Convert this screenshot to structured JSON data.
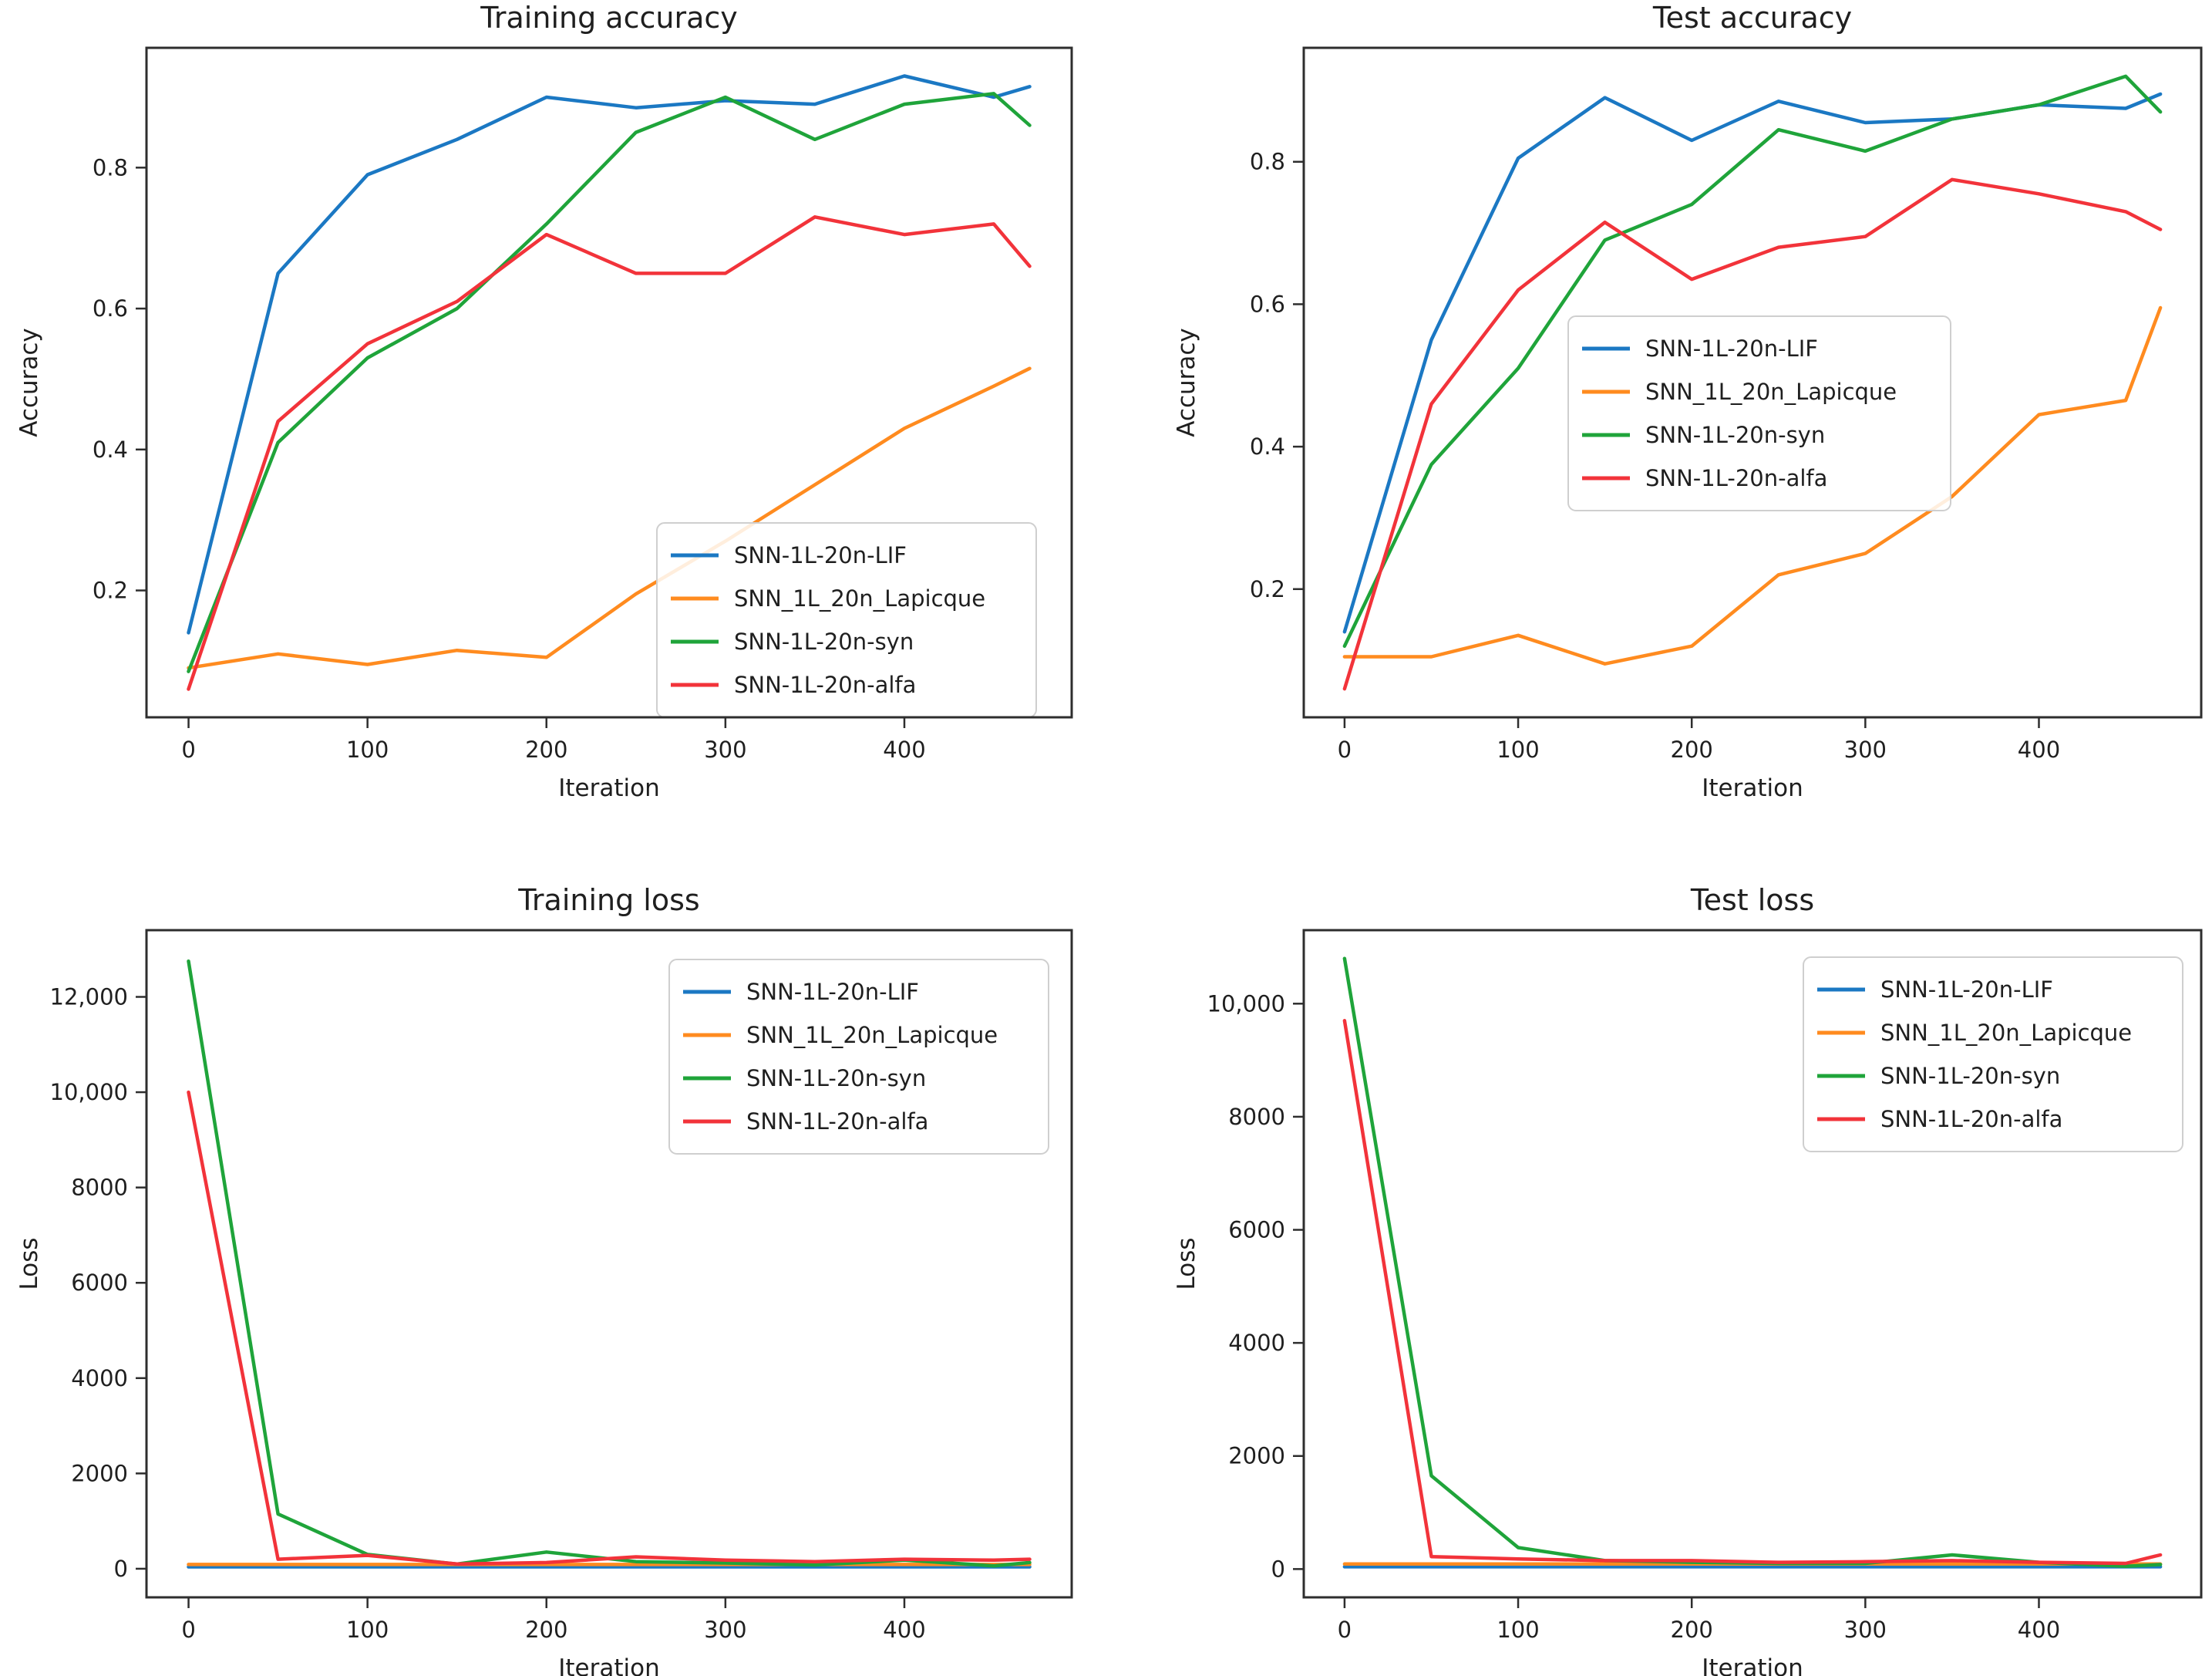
{
  "figure": {
    "background_color": "#ffffff",
    "text_color": "#1f1f1f",
    "spine_color": "#2e2e2e",
    "legend_border_color": "#cfcfcf"
  },
  "chart_data": [
    {
      "id": "training-accuracy",
      "type": "line",
      "title": "Training accuracy",
      "xlabel": "Iteration",
      "ylabel": "Accuracy",
      "grid": false,
      "legend_position": "lower right",
      "x": [
        0,
        50,
        100,
        150,
        200,
        250,
        300,
        350,
        400,
        450,
        470
      ],
      "xlim": [
        -23.5,
        493.5
      ],
      "ylim": [
        0.02,
        0.97
      ],
      "xticks": [
        {
          "v": 0,
          "label": "0"
        },
        {
          "v": 100,
          "label": "100"
        },
        {
          "v": 200,
          "label": "200"
        },
        {
          "v": 300,
          "label": "300"
        },
        {
          "v": 400,
          "label": "400"
        }
      ],
      "yticks": [
        {
          "v": 0.2,
          "label": "0.2"
        },
        {
          "v": 0.4,
          "label": "0.4"
        },
        {
          "v": 0.6,
          "label": "0.6"
        },
        {
          "v": 0.8,
          "label": "0.8"
        }
      ],
      "series": [
        {
          "name": "SNN-1L-20n-LIF",
          "color": "#1b78c3",
          "values": [
            0.14,
            0.65,
            0.79,
            0.84,
            0.9,
            0.885,
            0.895,
            0.89,
            0.93,
            0.9,
            0.915
          ]
        },
        {
          "name": "SNN_1L_20n_Lapicque",
          "color": "#ff8b1f",
          "values": [
            0.09,
            0.11,
            0.095,
            0.115,
            0.105,
            0.195,
            0.27,
            0.35,
            0.43,
            0.49,
            0.515
          ]
        },
        {
          "name": "SNN-1L-20n-syn",
          "color": "#1fa43a",
          "values": [
            0.085,
            0.41,
            0.53,
            0.6,
            0.72,
            0.85,
            0.9,
            0.84,
            0.89,
            0.905,
            0.86
          ]
        },
        {
          "name": "SNN-1L-20n-alfa",
          "color": "#f2333a",
          "values": [
            0.06,
            0.44,
            0.55,
            0.61,
            0.705,
            0.65,
            0.65,
            0.73,
            0.705,
            0.72,
            0.66
          ]
        }
      ]
    },
    {
      "id": "test-accuracy",
      "type": "line",
      "title": "Test accuracy",
      "xlabel": "Iteration",
      "ylabel": "Accuracy",
      "grid": false,
      "legend_position": "center",
      "x": [
        0,
        50,
        100,
        150,
        200,
        250,
        300,
        350,
        400,
        450,
        470
      ],
      "xlim": [
        -23.5,
        493.5
      ],
      "ylim": [
        0.02,
        0.96
      ],
      "xticks": [
        {
          "v": 0,
          "label": "0"
        },
        {
          "v": 100,
          "label": "100"
        },
        {
          "v": 200,
          "label": "200"
        },
        {
          "v": 300,
          "label": "300"
        },
        {
          "v": 400,
          "label": "400"
        }
      ],
      "yticks": [
        {
          "v": 0.2,
          "label": "0.2"
        },
        {
          "v": 0.4,
          "label": "0.4"
        },
        {
          "v": 0.6,
          "label": "0.6"
        },
        {
          "v": 0.8,
          "label": "0.8"
        }
      ],
      "series": [
        {
          "name": "SNN-1L-20n-LIF",
          "color": "#1b78c3",
          "values": [
            0.14,
            0.55,
            0.805,
            0.89,
            0.83,
            0.885,
            0.855,
            0.86,
            0.88,
            0.875,
            0.895
          ]
        },
        {
          "name": "SNN_1L_20n_Lapicque",
          "color": "#ff8b1f",
          "values": [
            0.105,
            0.105,
            0.135,
            0.095,
            0.12,
            0.22,
            0.25,
            0.33,
            0.445,
            0.465,
            0.595
          ]
        },
        {
          "name": "SNN-1L-20n-syn",
          "color": "#1fa43a",
          "values": [
            0.12,
            0.375,
            0.51,
            0.69,
            0.74,
            0.845,
            0.815,
            0.86,
            0.88,
            0.92,
            0.87
          ]
        },
        {
          "name": "SNN-1L-20n-alfa",
          "color": "#f2333a",
          "values": [
            0.06,
            0.46,
            0.62,
            0.715,
            0.635,
            0.68,
            0.695,
            0.775,
            0.755,
            0.73,
            0.705
          ]
        }
      ]
    },
    {
      "id": "training-loss",
      "type": "line",
      "title": "Training loss",
      "xlabel": "Iteration",
      "ylabel": "Loss",
      "grid": false,
      "legend_position": "upper right",
      "x": [
        0,
        50,
        100,
        150,
        200,
        250,
        300,
        350,
        400,
        450,
        470
      ],
      "xlim": [
        -23.5,
        493.5
      ],
      "ylim": [
        -600,
        13400
      ],
      "xticks": [
        {
          "v": 0,
          "label": "0"
        },
        {
          "v": 100,
          "label": "100"
        },
        {
          "v": 200,
          "label": "200"
        },
        {
          "v": 300,
          "label": "300"
        },
        {
          "v": 400,
          "label": "400"
        }
      ],
      "yticks": [
        {
          "v": 0,
          "label": "0"
        },
        {
          "v": 2000,
          "label": "2000"
        },
        {
          "v": 4000,
          "label": "4000"
        },
        {
          "v": 6000,
          "label": "6000"
        },
        {
          "v": 8000,
          "label": "8000"
        },
        {
          "v": 10000,
          "label": "10,000"
        },
        {
          "v": 12000,
          "label": "12,000"
        }
      ],
      "series": [
        {
          "name": "SNN-1L-20n-LIF",
          "color": "#1b78c3",
          "values": [
            40,
            40,
            40,
            40,
            40,
            40,
            40,
            40,
            40,
            40,
            40
          ]
        },
        {
          "name": "SNN_1L_20n_Lapicque",
          "color": "#ff8b1f",
          "values": [
            90,
            90,
            90,
            90,
            90,
            90,
            90,
            90,
            90,
            90,
            90
          ]
        },
        {
          "name": "SNN-1L-20n-syn",
          "color": "#1fa43a",
          "values": [
            12750,
            1150,
            300,
            100,
            350,
            150,
            120,
            80,
            180,
            60,
            130
          ]
        },
        {
          "name": "SNN-1L-20n-alfa",
          "color": "#f2333a",
          "values": [
            10000,
            200,
            280,
            100,
            130,
            250,
            180,
            150,
            200,
            180,
            200
          ]
        }
      ]
    },
    {
      "id": "test-loss",
      "type": "line",
      "title": "Test loss",
      "xlabel": "Iteration",
      "ylabel": "Loss",
      "grid": false,
      "legend_position": "upper right",
      "x": [
        0,
        50,
        100,
        150,
        200,
        250,
        300,
        350,
        400,
        450,
        470
      ],
      "xlim": [
        -23.5,
        493.5
      ],
      "ylim": [
        -500,
        11300
      ],
      "xticks": [
        {
          "v": 0,
          "label": "0"
        },
        {
          "v": 100,
          "label": "100"
        },
        {
          "v": 200,
          "label": "200"
        },
        {
          "v": 300,
          "label": "300"
        },
        {
          "v": 400,
          "label": "400"
        }
      ],
      "yticks": [
        {
          "v": 0,
          "label": "0"
        },
        {
          "v": 2000,
          "label": "2000"
        },
        {
          "v": 4000,
          "label": "4000"
        },
        {
          "v": 6000,
          "label": "6000"
        },
        {
          "v": 8000,
          "label": "8000"
        },
        {
          "v": 10000,
          "label": "10,000"
        }
      ],
      "series": [
        {
          "name": "SNN-1L-20n-LIF",
          "color": "#1b78c3",
          "values": [
            40,
            40,
            40,
            40,
            40,
            40,
            40,
            40,
            40,
            40,
            40
          ]
        },
        {
          "name": "SNN_1L_20n_Lapicque",
          "color": "#ff8b1f",
          "values": [
            90,
            90,
            90,
            90,
            90,
            90,
            90,
            90,
            90,
            90,
            90
          ]
        },
        {
          "name": "SNN-1L-20n-syn",
          "color": "#1fa43a",
          "values": [
            10800,
            1650,
            380,
            150,
            120,
            100,
            100,
            250,
            120,
            50,
            80
          ]
        },
        {
          "name": "SNN-1L-20n-alfa",
          "color": "#f2333a",
          "values": [
            9700,
            220,
            180,
            150,
            150,
            120,
            130,
            150,
            120,
            100,
            250
          ]
        }
      ]
    }
  ]
}
